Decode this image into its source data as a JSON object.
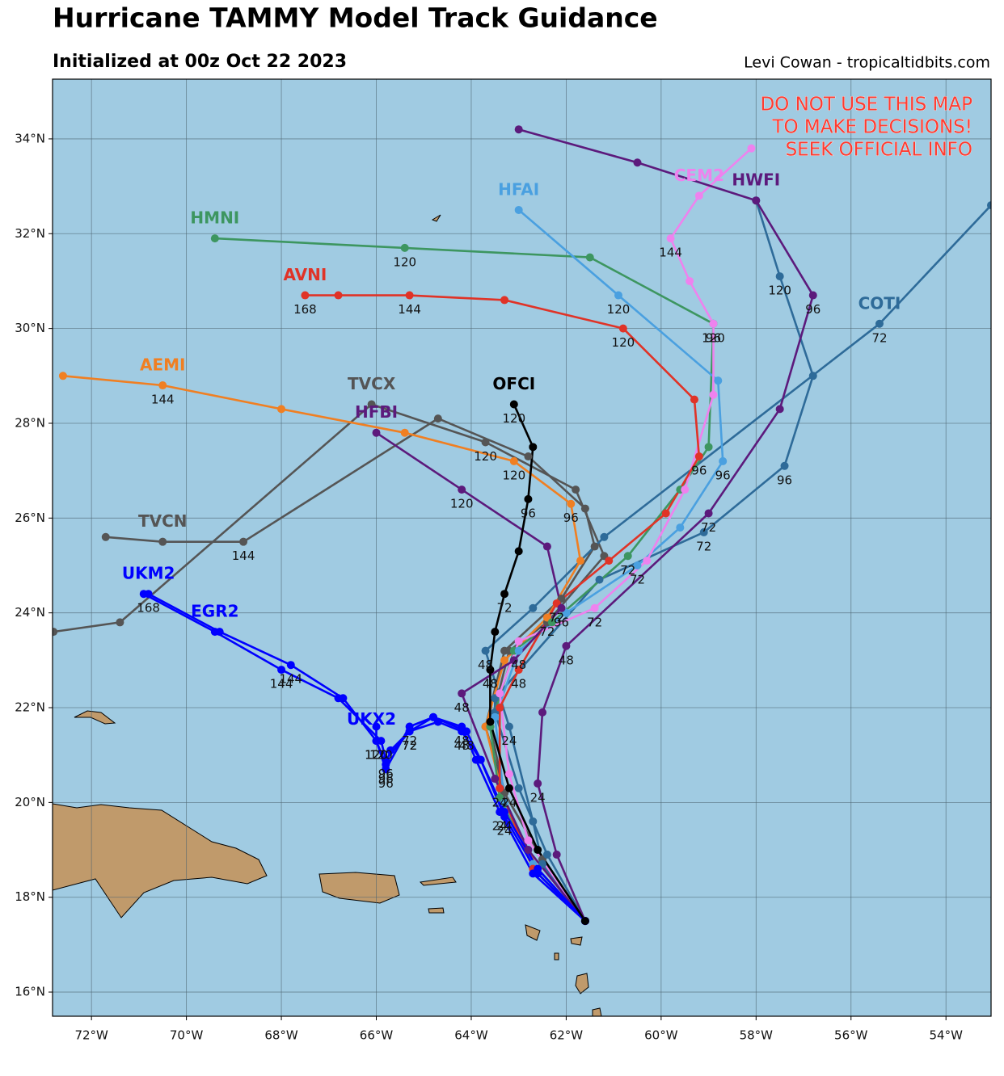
{
  "chart_data": {
    "type": "map",
    "title": "Hurricane TAMMY Model Track Guidance",
    "subtitle": "Initialized at 00z Oct 22 2023",
    "credit": "Levi Cowan - tropicaltidbits.com",
    "warning": [
      "DO NOT USE THIS MAP",
      "TO MAKE DECISIONS!",
      "SEEK OFFICIAL INFO"
    ],
    "xlim": [
      -72.82,
      -53.05
    ],
    "ylim": [
      15.49,
      35.26
    ],
    "xticks": [
      {
        "value": -72,
        "label": "72°W"
      },
      {
        "value": -70,
        "label": "70°W"
      },
      {
        "value": -68,
        "label": "68°W"
      },
      {
        "value": -66,
        "label": "66°W"
      },
      {
        "value": -64,
        "label": "64°W"
      },
      {
        "value": -62,
        "label": "62°W"
      },
      {
        "value": -60,
        "label": "60°W"
      },
      {
        "value": -58,
        "label": "58°W"
      },
      {
        "value": -56,
        "label": "56°W"
      },
      {
        "value": -54,
        "label": "54°W"
      }
    ],
    "yticks": [
      {
        "value": 16,
        "label": "16°N"
      },
      {
        "value": 18,
        "label": "18°N"
      },
      {
        "value": 20,
        "label": "20°N"
      },
      {
        "value": 22,
        "label": "22°N"
      },
      {
        "value": 24,
        "label": "24°N"
      },
      {
        "value": 26,
        "label": "26°N"
      },
      {
        "value": 28,
        "label": "28°N"
      },
      {
        "value": 30,
        "label": "30°N"
      },
      {
        "value": 32,
        "label": "32°N"
      },
      {
        "value": 34,
        "label": "34°N"
      }
    ],
    "grid": true,
    "series": [
      {
        "name": "TVCX",
        "color": "#555555",
        "x": [
          -61.6,
          -62.5,
          -63.3,
          -63.6,
          -63.2,
          -62.4,
          -61.2,
          -61.8,
          -63.7,
          -66.1,
          -71.4,
          -72.8
        ],
        "values": [
          17.5,
          18.8,
          20.2,
          21.6,
          23.2,
          23.8,
          25.2,
          26.6,
          27.6,
          28.4,
          23.8,
          23.6
        ],
        "labels": [
          null,
          null,
          null,
          null,
          null,
          null,
          null,
          null,
          120,
          null,
          null,
          null
        ]
      },
      {
        "name": "TVCN",
        "color": "#555555",
        "x": [
          -61.6,
          -62.5,
          -63.3,
          -63.7,
          -63.3,
          -62.1,
          -61.4,
          -61.6,
          -62.8,
          -64.7,
          -68.8,
          -70.5,
          -71.7
        ],
        "values": [
          17.5,
          18.8,
          20.2,
          21.6,
          23.2,
          24.3,
          25.4,
          26.2,
          27.3,
          28.1,
          25.5,
          25.5,
          25.6
        ],
        "labels": [
          null,
          null,
          null,
          null,
          null,
          null,
          null,
          null,
          null,
          null,
          144,
          null,
          null
        ]
      },
      {
        "color": "#2e6b99",
        "x": [
          -61.6,
          -62.4,
          -63.0,
          -63.5,
          -63.5,
          -61.3,
          -59.1,
          -57.4,
          -56.8,
          -57.5,
          -58.0
        ],
        "values": [
          17.5,
          18.9,
          20.3,
          21.9,
          22.2,
          24.7,
          25.7,
          27.1,
          29.0,
          31.1,
          32.7
        ],
        "labels": [
          null,
          null,
          null,
          null,
          null,
          null,
          72,
          96,
          null,
          120,
          null
        ]
      },
      {
        "name": "COTI",
        "color": "#2e6b99",
        "x": [
          -61.6,
          -62.5,
          -62.7,
          -63.2,
          -63.7,
          -62.7,
          -61.2,
          -55.4,
          -53.05
        ],
        "values": [
          17.5,
          18.7,
          19.6,
          21.6,
          23.2,
          24.1,
          25.6,
          30.1,
          32.6
        ],
        "labels": [
          null,
          null,
          null,
          24,
          48,
          null,
          null,
          72,
          null
        ]
      },
      {
        "name": "AEMI",
        "color": "#f07f22",
        "x": [
          -61.6,
          -62.6,
          -63.3,
          -63.7,
          -63.3,
          -62.4,
          -61.7,
          -61.9,
          -63.1,
          -65.4,
          -68.0,
          -70.5,
          -72.6
        ],
        "values": [
          17.5,
          18.6,
          20.0,
          21.6,
          23.0,
          23.9,
          25.1,
          26.3,
          27.2,
          27.8,
          28.3,
          28.8,
          29.0
        ],
        "labels": [
          null,
          null,
          null,
          null,
          null,
          72,
          null,
          96,
          120,
          null,
          null,
          144,
          null
        ]
      },
      {
        "name": "HMNI",
        "color": "#3d9660",
        "x": [
          -61.6,
          -62.7,
          -63.4,
          -63.6,
          -63.1,
          -62.3,
          -60.7,
          -59.6,
          -59.0,
          -58.9,
          -61.5,
          -65.4,
          -69.4
        ],
        "values": [
          17.5,
          18.7,
          20.1,
          21.6,
          23.2,
          23.8,
          25.2,
          26.6,
          27.5,
          30.1,
          31.5,
          31.7,
          31.9
        ],
        "labels": [
          null,
          null,
          null,
          null,
          null,
          null,
          72,
          null,
          null,
          96,
          null,
          120,
          null
        ]
      },
      {
        "name": "HFAI",
        "color": "#4aa0e0",
        "x": [
          -61.6,
          -62.7,
          -63.3,
          -63.5,
          -63.0,
          -62.0,
          -60.5,
          -59.6,
          -58.7,
          -58.8,
          -60.9,
          -63.0
        ],
        "values": [
          17.5,
          18.7,
          20.0,
          21.8,
          23.2,
          24.0,
          25.0,
          25.8,
          27.2,
          28.9,
          30.7,
          32.5
        ],
        "labels": [
          null,
          null,
          null,
          null,
          48,
          null,
          72,
          null,
          96,
          null,
          120,
          null
        ]
      },
      {
        "name": "CEM2",
        "color": "#ee82ee",
        "x": [
          -61.6,
          -62.8,
          -63.2,
          -63.4,
          -63.0,
          -61.4,
          -60.3,
          -59.5,
          -58.9,
          -58.9,
          -59.4,
          -59.8,
          -59.2,
          -58.1
        ],
        "values": [
          17.5,
          19.2,
          20.6,
          22.3,
          23.4,
          24.1,
          25.1,
          26.6,
          28.6,
          30.1,
          31.0,
          31.9,
          32.8,
          33.8
        ],
        "labels": [
          null,
          null,
          null,
          null,
          null,
          72,
          null,
          null,
          null,
          120,
          null,
          144,
          null,
          null
        ]
      },
      {
        "name": "AVNI",
        "color": "#e03327",
        "x": [
          -61.6,
          -62.7,
          -63.4,
          -63.4,
          -63.0,
          -62.2,
          -61.1,
          -59.9,
          -59.2,
          -59.3,
          -60.8,
          -63.3,
          -65.3,
          -66.8,
          -67.5
        ],
        "values": [
          17.5,
          18.6,
          20.3,
          22.0,
          22.8,
          24.2,
          25.1,
          26.1,
          27.3,
          28.5,
          30.0,
          30.6,
          30.7,
          30.7,
          30.7
        ],
        "labels": [
          null,
          null,
          24,
          null,
          48,
          72,
          null,
          null,
          96,
          null,
          120,
          null,
          144,
          null,
          168
        ]
      },
      {
        "name": "HWFI",
        "color": "#5c1a7c",
        "x": [
          -61.6,
          -62.2,
          -62.6,
          -62.5,
          -62.0,
          -59.0,
          -57.5,
          -56.8,
          -58.0,
          -60.5,
          -63.0
        ],
        "values": [
          17.5,
          18.9,
          20.4,
          21.9,
          23.3,
          26.1,
          28.3,
          30.7,
          32.7,
          33.5,
          34.2
        ],
        "labels": [
          null,
          null,
          24,
          null,
          48,
          72,
          null,
          96,
          null,
          null,
          null
        ]
      },
      {
        "name": "HFBI",
        "color": "#5c1a7c",
        "x": [
          -61.6,
          -62.8,
          -63.5,
          -64.2,
          -63.1,
          -62.1,
          -62.4,
          -64.2,
          -66.0
        ],
        "values": [
          17.5,
          19.0,
          20.5,
          22.3,
          23.0,
          24.1,
          25.4,
          26.6,
          27.8
        ],
        "labels": [
          null,
          null,
          null,
          48,
          null,
          96,
          null,
          120,
          null
        ]
      },
      {
        "name": "UKM2",
        "color": "#0000ff",
        "x": [
          -61.6,
          -62.6,
          -63.3,
          -63.8,
          -64.1,
          -64.8,
          -65.3,
          -65.7,
          -65.8,
          -66.0,
          -66.7,
          -67.8,
          -69.3,
          -70.8
        ],
        "values": [
          17.5,
          18.5,
          19.7,
          20.9,
          21.5,
          21.8,
          21.5,
          21.1,
          20.8,
          21.3,
          22.2,
          22.9,
          23.6,
          24.4
        ],
        "labels": [
          null,
          null,
          24,
          null,
          48,
          null,
          72,
          null,
          96,
          120,
          null,
          144,
          null,
          168
        ]
      },
      {
        "name": "EGR2",
        "color": "#0000ff",
        "x": [
          -61.6,
          -62.6,
          -63.3,
          -63.8,
          -64.2,
          -64.7,
          -65.3,
          -65.8,
          -65.9,
          -66.8,
          -68.0,
          -69.4,
          -70.9
        ],
        "values": [
          17.5,
          18.6,
          19.8,
          20.9,
          21.5,
          21.7,
          21.5,
          20.9,
          21.3,
          22.2,
          22.8,
          23.6,
          24.4
        ],
        "labels": [
          null,
          null,
          24,
          null,
          48,
          null,
          72,
          96,
          120,
          null,
          144,
          null,
          null
        ]
      },
      {
        "name": "UKX2",
        "color": "#0000ff",
        "x": [
          -61.6,
          -62.7,
          -63.4,
          -63.9,
          -64.2,
          -64.8,
          -65.3,
          -65.8,
          -66.0,
          -66.0
        ],
        "values": [
          17.5,
          18.5,
          19.8,
          20.9,
          21.6,
          21.8,
          21.6,
          20.7,
          21.3,
          21.6
        ],
        "labels": [
          null,
          null,
          24,
          null,
          48,
          null,
          72,
          96,
          120,
          null
        ]
      },
      {
        "name": "OFCI",
        "color": "#000000",
        "x": [
          -61.6,
          -62.6,
          -63.2,
          -63.6,
          -63.6,
          -63.5,
          -63.3,
          -63.0,
          -62.8,
          -62.7,
          -63.1
        ],
        "values": [
          17.5,
          19.0,
          20.3,
          21.7,
          22.8,
          23.6,
          24.4,
          25.3,
          26.4,
          27.5,
          28.4
        ],
        "labels": [
          null,
          null,
          24,
          null,
          48,
          null,
          72,
          null,
          96,
          null,
          120
        ]
      }
    ]
  }
}
